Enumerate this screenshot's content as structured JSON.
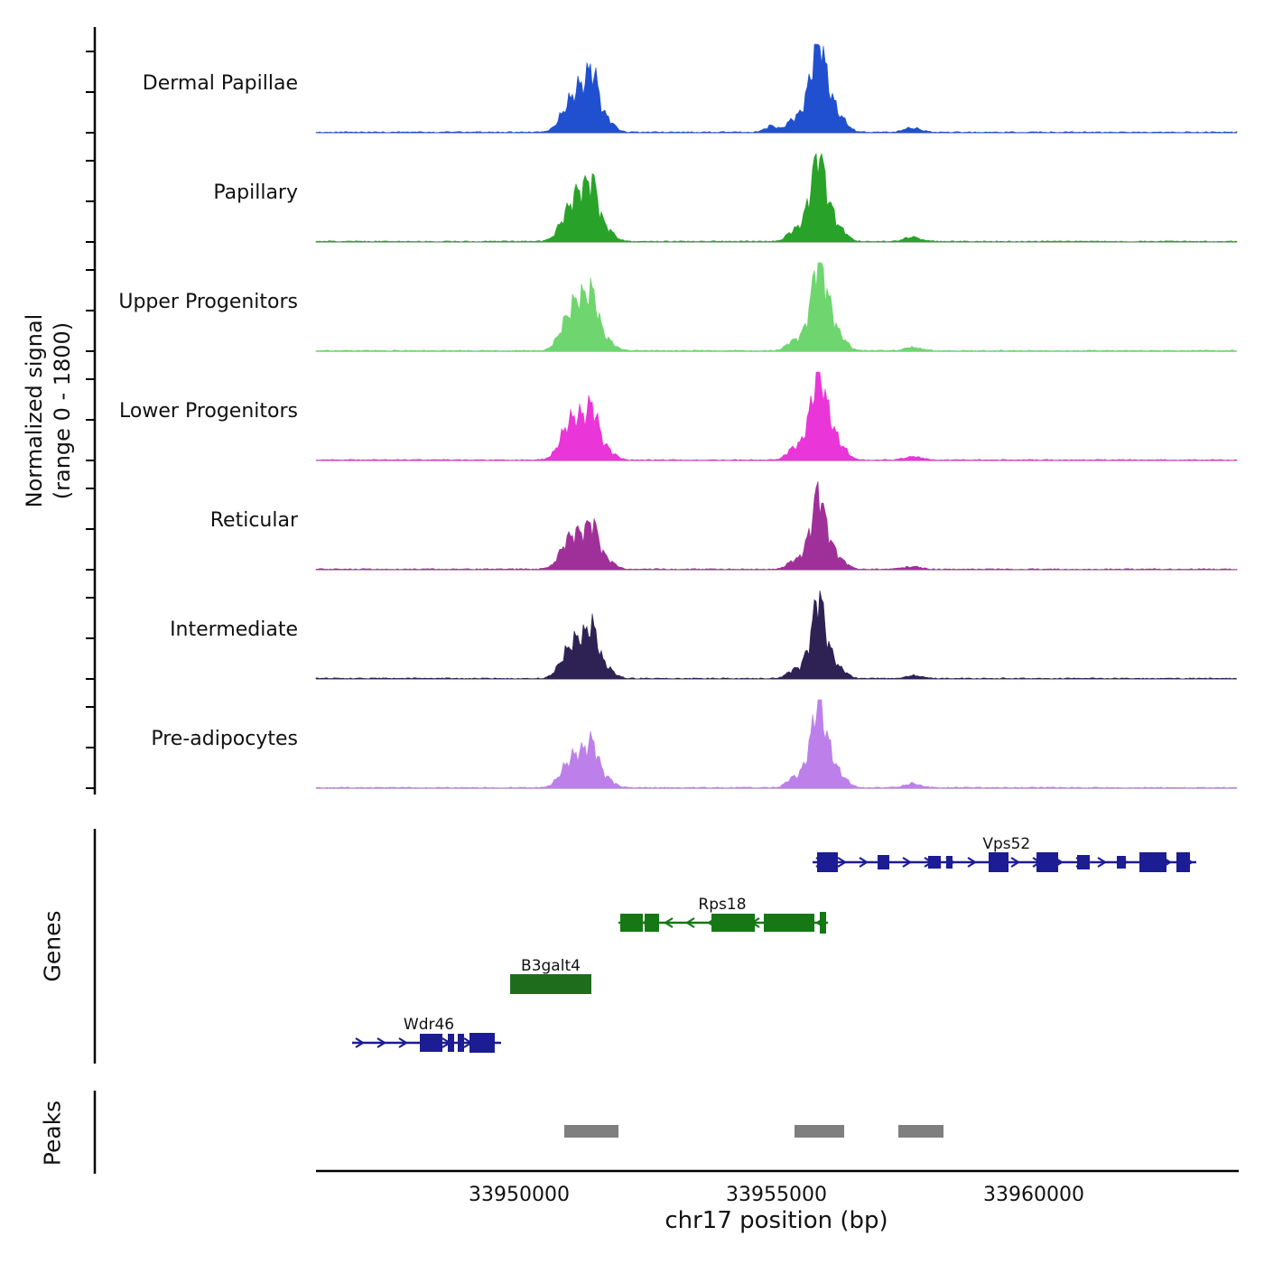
{
  "y_axis": {
    "label_line1": "Normalized signal",
    "label_line2": "(range 0 - 1800)"
  },
  "x_axis": {
    "title": "chr17 position (bp)",
    "ticks": [
      {
        "bp": 33950000,
        "label": "33950000"
      },
      {
        "bp": 33955000,
        "label": "33955000"
      },
      {
        "bp": 33960000,
        "label": "33960000"
      }
    ]
  },
  "sections": {
    "genes": "Genes",
    "peaks": "Peaks"
  },
  "chart_data": {
    "type": "area",
    "chrom": "chr17",
    "x_min_bp": 33946050,
    "x_max_bp": 33963950,
    "signal_range": [
      0,
      1800
    ],
    "tracks": [
      {
        "label": "Dermal Papillae",
        "color": "#2050cf",
        "bumps": [
          [
            33950950,
            170,
            0.26
          ],
          [
            33951200,
            140,
            0.4
          ],
          [
            33951430,
            110,
            0.58
          ],
          [
            33951680,
            150,
            0.16
          ],
          [
            33954900,
            120,
            0.07
          ],
          [
            33955350,
            140,
            0.16
          ],
          [
            33955640,
            110,
            0.42
          ],
          [
            33955820,
            95,
            0.98
          ],
          [
            33956010,
            110,
            0.4
          ],
          [
            33956240,
            140,
            0.16
          ],
          [
            33957650,
            160,
            0.05
          ]
        ]
      },
      {
        "label": "Papillary",
        "color": "#28a228",
        "bumps": [
          [
            33950950,
            170,
            0.3
          ],
          [
            33951200,
            140,
            0.45
          ],
          [
            33951430,
            110,
            0.55
          ],
          [
            33951680,
            150,
            0.15
          ],
          [
            33955350,
            140,
            0.13
          ],
          [
            33955640,
            110,
            0.38
          ],
          [
            33955820,
            95,
            0.9
          ],
          [
            33956010,
            110,
            0.36
          ],
          [
            33956240,
            140,
            0.13
          ],
          [
            33957650,
            160,
            0.05
          ]
        ]
      },
      {
        "label": "Upper Progenitors",
        "color": "#6fd66f",
        "bumps": [
          [
            33950950,
            170,
            0.34
          ],
          [
            33951200,
            140,
            0.46
          ],
          [
            33951430,
            110,
            0.52
          ],
          [
            33951680,
            150,
            0.14
          ],
          [
            33955350,
            140,
            0.12
          ],
          [
            33955640,
            110,
            0.32
          ],
          [
            33955820,
            95,
            1.0
          ],
          [
            33956010,
            110,
            0.45
          ],
          [
            33956240,
            140,
            0.15
          ],
          [
            33957650,
            160,
            0.04
          ]
        ]
      },
      {
        "label": "Lower Progenitors",
        "color": "#ea35d8",
        "bumps": [
          [
            33950950,
            170,
            0.36
          ],
          [
            33951200,
            140,
            0.34
          ],
          [
            33951430,
            110,
            0.5
          ],
          [
            33951680,
            150,
            0.14
          ],
          [
            33955350,
            140,
            0.14
          ],
          [
            33955640,
            110,
            0.38
          ],
          [
            33955820,
            95,
            0.92
          ],
          [
            33956010,
            110,
            0.42
          ],
          [
            33956240,
            140,
            0.16
          ],
          [
            33957650,
            160,
            0.04
          ]
        ]
      },
      {
        "label": "Reticular",
        "color": "#a03099",
        "bumps": [
          [
            33950950,
            170,
            0.3
          ],
          [
            33951200,
            140,
            0.28
          ],
          [
            33951430,
            110,
            0.44
          ],
          [
            33951680,
            150,
            0.12
          ],
          [
            33955350,
            140,
            0.1
          ],
          [
            33955640,
            110,
            0.3
          ],
          [
            33955820,
            95,
            0.78
          ],
          [
            33956010,
            110,
            0.3
          ],
          [
            33956240,
            140,
            0.1
          ],
          [
            33957650,
            160,
            0.03
          ]
        ]
      },
      {
        "label": "Intermediate",
        "color": "#2e2255",
        "bumps": [
          [
            33950950,
            170,
            0.28
          ],
          [
            33951200,
            140,
            0.34
          ],
          [
            33951430,
            110,
            0.48
          ],
          [
            33951680,
            150,
            0.13
          ],
          [
            33955350,
            140,
            0.1
          ],
          [
            33955640,
            110,
            0.28
          ],
          [
            33955820,
            95,
            0.84
          ],
          [
            33956010,
            110,
            0.28
          ],
          [
            33956240,
            140,
            0.1
          ],
          [
            33957650,
            160,
            0.03
          ]
        ]
      },
      {
        "label": "Pre-adipocytes",
        "color": "#bd80ea",
        "bumps": [
          [
            33950950,
            170,
            0.24
          ],
          [
            33951200,
            140,
            0.3
          ],
          [
            33951430,
            110,
            0.42
          ],
          [
            33951680,
            150,
            0.12
          ],
          [
            33955350,
            140,
            0.12
          ],
          [
            33955640,
            110,
            0.34
          ],
          [
            33955820,
            95,
            0.9
          ],
          [
            33956010,
            110,
            0.38
          ],
          [
            33956240,
            140,
            0.14
          ],
          [
            33957650,
            160,
            0.05
          ]
        ]
      }
    ],
    "genes": [
      {
        "name": "Vps52",
        "color": "#1c1c94",
        "strand": "+",
        "row": 0,
        "start": 33955702,
        "end": 33963158,
        "label_bp": 33959470,
        "exons": [
          [
            33955789,
            33956193,
            22
          ],
          [
            33956965,
            33957193,
            16
          ],
          [
            33957947,
            33958193,
            14
          ],
          [
            33958298,
            33958421,
            14
          ],
          [
            33959123,
            33959509,
            22
          ],
          [
            33960053,
            33960474,
            22
          ],
          [
            33960842,
            33961088,
            16
          ],
          [
            33961614,
            33961789,
            14
          ],
          [
            33962053,
            33962579,
            22
          ],
          [
            33962772,
            33963035,
            22
          ]
        ]
      },
      {
        "name": "Rps18",
        "color": "#157815",
        "strand": "-",
        "row": 1,
        "start": 33951930,
        "end": 33956000,
        "label_bp": 33953947,
        "exons": [
          [
            33951965,
            33952404,
            20
          ],
          [
            33952439,
            33952719,
            20
          ],
          [
            33953737,
            33954579,
            20
          ],
          [
            33954754,
            33955737,
            20
          ],
          [
            33955842,
            33955965,
            24
          ]
        ]
      },
      {
        "name": "B3galt4",
        "color": "#1d6d1d",
        "strand": "",
        "row": 2,
        "start": 33949825,
        "end": 33951403,
        "label_bp": 33950614,
        "exons": [
          [
            33949825,
            33951403,
            22
          ]
        ]
      },
      {
        "name": "Wdr46",
        "color": "#1c1c94",
        "strand": "+",
        "row": 3,
        "start": 33946754,
        "end": 33949649,
        "label_bp": 33948246,
        "exons": [
          [
            33948070,
            33948509,
            20
          ],
          [
            33948614,
            33948737,
            20
          ],
          [
            33948807,
            33948930,
            20
          ],
          [
            33949035,
            33949526,
            22
          ]
        ]
      }
    ],
    "peaks": {
      "color": "#7f7f7f",
      "regions": [
        [
          33950877,
          33951930
        ],
        [
          33955351,
          33956316
        ],
        [
          33957368,
          33958246
        ]
      ]
    }
  }
}
